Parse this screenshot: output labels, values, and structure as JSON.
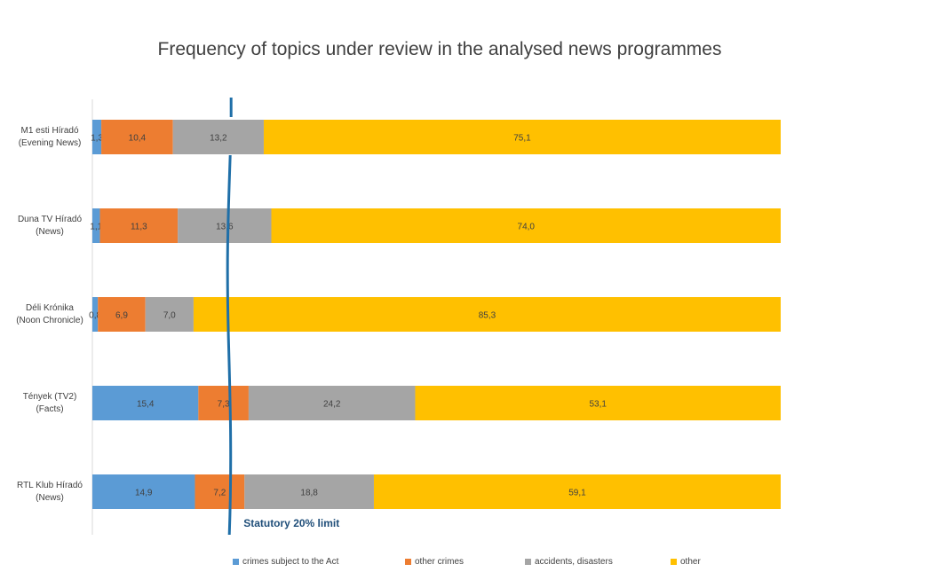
{
  "chart_data": {
    "type": "bar",
    "orientation": "horizontal",
    "stacked": true,
    "title": "Frequency of topics under review in the analysed news programmes",
    "categories": [
      [
        "M1 esti Híradó",
        "(Evening News)"
      ],
      [
        "Duna TV Híradó",
        "(News)"
      ],
      [
        "Déli Krónika",
        "(Noon Chronicle)"
      ],
      [
        "Tények (TV2)",
        "(Facts)"
      ],
      [
        "RTL Klub Híradó",
        "(News)"
      ]
    ],
    "series": [
      {
        "name": "crimes subject to the Act",
        "color": "#5b9bd5",
        "values": [
          1.3,
          1.1,
          0.8,
          15.4,
          14.9
        ],
        "labels": [
          "1,3",
          "1,1",
          "0,8",
          "15,4",
          "14,9"
        ]
      },
      {
        "name": "other crimes",
        "color": "#ed7d31",
        "values": [
          10.4,
          11.3,
          6.9,
          7.3,
          7.2
        ],
        "labels": [
          "10,4",
          "11,3",
          "6,9",
          "7,3",
          "7,2"
        ]
      },
      {
        "name": "accidents, disasters",
        "color": "#a5a5a5",
        "values": [
          13.2,
          13.6,
          7.0,
          24.2,
          18.8
        ],
        "labels": [
          "13,2",
          "13,6",
          "7,0",
          "24,2",
          "18,8"
        ]
      },
      {
        "name": "other",
        "color": "#ffc000",
        "values": [
          75.1,
          74.0,
          85.3,
          53.1,
          59.1
        ],
        "labels": [
          "75,1",
          "74,0",
          "85,3",
          "53,1",
          "59,1"
        ]
      }
    ],
    "xlim": [
      0,
      100
    ],
    "grid": false,
    "legend": "bottom",
    "annotation": {
      "text": "Statutory 20% limit",
      "x": 20,
      "color": "#1f6fa8"
    }
  }
}
